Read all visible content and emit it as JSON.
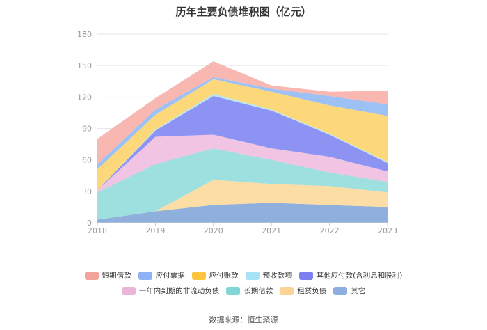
{
  "title": "历年主要负债堆积图（亿元）",
  "source": "数据来源：恒生聚源",
  "chart_data": {
    "type": "area",
    "stacked": true,
    "title": "历年主要负债堆积图（亿元）",
    "categories": [
      "2018",
      "2019",
      "2020",
      "2021",
      "2022",
      "2023"
    ],
    "ylim": [
      0,
      180
    ],
    "yticks": [
      "0",
      "30",
      "60",
      "90",
      "120",
      "150",
      "180"
    ],
    "grid": true,
    "legend_position": "bottom",
    "series": [
      {
        "name": "其它",
        "color": "#8fb0dc",
        "values": [
          3,
          11,
          17,
          19,
          17,
          15
        ]
      },
      {
        "name": "租赁负债",
        "color": "#fbdda5",
        "values": [
          0,
          0,
          24,
          18,
          18,
          14
        ]
      },
      {
        "name": "长期借款",
        "color": "#9edfdf",
        "values": [
          26,
          45,
          30,
          23,
          13,
          10
        ]
      },
      {
        "name": "一年内到期的非流动负债",
        "color": "#f0c4e2",
        "values": [
          2,
          26,
          13,
          11,
          15,
          10
        ]
      },
      {
        "name": "其他应付款(含利息和股利)",
        "color": "#8d93f2",
        "values": [
          0,
          6,
          37,
          36,
          21,
          8
        ]
      },
      {
        "name": "预收款项",
        "color": "#b9e6f6",
        "values": [
          0,
          1,
          2,
          1,
          1,
          1
        ]
      },
      {
        "name": "应付账款",
        "color": "#fdd87b",
        "values": [
          20,
          14,
          14,
          17,
          27,
          44
        ]
      },
      {
        "name": "应付票据",
        "color": "#9dc0f5",
        "values": [
          5,
          5,
          2,
          3,
          9,
          11
        ]
      },
      {
        "name": "短期借款",
        "color": "#f9b7b1",
        "values": [
          24,
          11,
          15,
          3,
          4,
          13
        ]
      }
    ]
  },
  "legend": {
    "rows": [
      [
        {
          "label": "短期借款",
          "color": "#f4a39b"
        },
        {
          "label": "应付票据",
          "color": "#8fb2f5"
        },
        {
          "label": "应付账款",
          "color": "#fcc43f"
        },
        {
          "label": "预收款项",
          "color": "#a8e2f7"
        },
        {
          "label": "其他应付款(含利息和股利)",
          "color": "#7b7ff0"
        }
      ],
      [
        {
          "label": "一年内到期的非流动负债",
          "color": "#eab5d9"
        },
        {
          "label": "长期借款",
          "color": "#80d7d6"
        },
        {
          "label": "租赁负债",
          "color": "#fbd495"
        },
        {
          "label": "其它",
          "color": "#8eaee0"
        }
      ]
    ]
  }
}
